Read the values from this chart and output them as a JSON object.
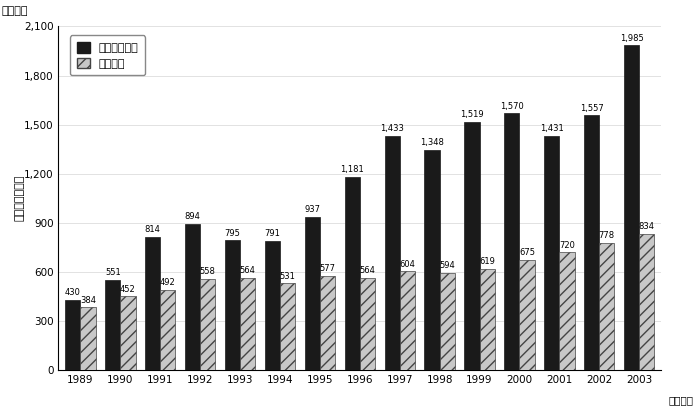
{
  "years": [
    1989,
    1990,
    1991,
    1992,
    1993,
    1994,
    1995,
    1996,
    1997,
    1998,
    1999,
    2000,
    2001,
    2002,
    2003
  ],
  "overseas": [
    430,
    551,
    814,
    894,
    795,
    791,
    937,
    1181,
    1433,
    1348,
    1519,
    1570,
    1431,
    1557,
    1985
  ],
  "domestic": [
    384,
    452,
    492,
    558,
    564,
    531,
    577,
    564,
    604,
    594,
    619,
    675,
    720,
    778,
    834
  ],
  "overseas_color": "#1a1a1a",
  "domestic_hatch": "///",
  "domestic_facecolor": "#c8c8c8",
  "domestic_edgecolor": "#444444",
  "title_unit": "（億円）",
  "ylabel": "研究費支出総額",
  "xlabel_suffix": "（年度）",
  "legend_overseas": "海外研究機関",
  "legend_domestic": "国内大学",
  "ylim": [
    0,
    2100
  ],
  "yticks": [
    0,
    300,
    600,
    900,
    1200,
    1500,
    1800,
    2100
  ],
  "bar_width": 0.38,
  "background_color": "#ffffff",
  "plot_bg_color": "#ffffff",
  "label_fontsize": 6.0,
  "tick_fontsize": 7.5,
  "ylabel_fontsize": 8,
  "legend_fontsize": 8,
  "unit_fontsize": 8
}
